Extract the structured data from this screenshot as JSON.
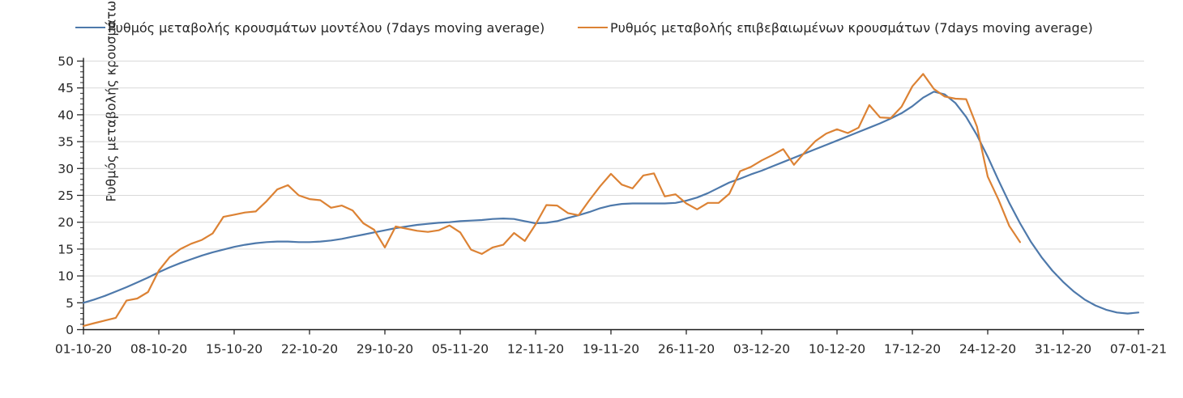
{
  "legend": {
    "items": [
      {
        "label": "Ρυθμός μεταβολής κρουσμάτων μοντέλου (7days moving average)",
        "color": "#4e79ab"
      },
      {
        "label": "Ρυθμός μεταβολής επιβεβαιωμένων κρουσμάτων (7days moving average)",
        "color": "#dc8234"
      }
    ]
  },
  "y_axis": {
    "title": "Ρυθμός μεταβολής κρουσμάτων",
    "tick_labels": [
      "0",
      "5",
      "10",
      "15",
      "20",
      "25",
      "30",
      "35",
      "40",
      "45",
      "50"
    ]
  },
  "x_axis": {
    "tick_labels": [
      "01-10-20",
      "08-10-20",
      "15-10-20",
      "22-10-20",
      "29-10-20",
      "05-11-20",
      "12-11-20",
      "19-11-20",
      "26-11-20",
      "03-12-20",
      "10-12-20",
      "17-12-20",
      "24-12-20",
      "31-12-20",
      "07-01-21"
    ]
  },
  "chart_data": {
    "type": "line",
    "title": "",
    "xlabel": "",
    "ylabel": "Ρυθμός μεταβολής κρουσμάτων",
    "ylim": [
      0,
      50
    ],
    "y_tick_step": 5,
    "y_minor_tick_step": 1,
    "grid": "horizontal light gray every 5",
    "legend_position": "top",
    "x_tick_labels": [
      "01-10-20",
      "08-10-20",
      "15-10-20",
      "22-10-20",
      "29-10-20",
      "05-11-20",
      "12-11-20",
      "19-11-20",
      "26-11-20",
      "03-12-20",
      "10-12-20",
      "17-12-20",
      "24-12-20",
      "31-12-20",
      "07-01-21"
    ],
    "x_days_per_tick": 7,
    "x_total_days": 98,
    "series": [
      {
        "name": "Ρυθμός μεταβολής κρουσμάτων μοντέλου (7days moving average)",
        "color": "#4e79ab",
        "start_day": 0,
        "values": [
          5.0,
          5.6,
          6.3,
          7.1,
          7.9,
          8.8,
          9.7,
          10.7,
          11.6,
          12.4,
          13.1,
          13.8,
          14.4,
          14.9,
          15.4,
          15.8,
          16.1,
          16.3,
          16.4,
          16.4,
          16.3,
          16.3,
          16.4,
          16.6,
          16.9,
          17.3,
          17.7,
          18.1,
          18.5,
          18.9,
          19.2,
          19.5,
          19.7,
          19.9,
          20.0,
          20.2,
          20.3,
          20.4,
          20.6,
          20.7,
          20.6,
          20.2,
          19.8,
          19.9,
          20.2,
          20.8,
          21.3,
          21.9,
          22.6,
          23.1,
          23.4,
          23.5,
          23.5,
          23.5,
          23.5,
          23.6,
          24.0,
          24.6,
          25.4,
          26.4,
          27.4,
          28.1,
          28.9,
          29.6,
          30.4,
          31.2,
          32.0,
          32.8,
          33.6,
          34.4,
          35.2,
          36.0,
          36.8,
          37.6,
          38.4,
          39.3,
          40.3,
          41.6,
          43.2,
          44.3,
          43.8,
          42.2,
          39.6,
          36.2,
          32.2,
          27.8,
          23.6,
          19.8,
          16.4,
          13.5,
          11.0,
          8.9,
          7.1,
          5.6,
          4.5,
          3.7,
          3.2,
          3.0,
          3.2
        ]
      },
      {
        "name": "Ρυθμός μεταβολής επιβεβαιωμένων κρουσμάτων (7days moving average)",
        "color": "#dc8234",
        "start_day": 0,
        "values": [
          0.7,
          1.2,
          1.7,
          2.2,
          5.4,
          5.8,
          7.0,
          11.0,
          13.5,
          15.0,
          16.0,
          16.7,
          17.9,
          21.0,
          21.4,
          21.8,
          22.0,
          23.9,
          26.1,
          26.9,
          25.0,
          24.3,
          24.1,
          22.7,
          23.1,
          22.2,
          19.8,
          18.6,
          15.3,
          19.2,
          18.8,
          18.4,
          18.2,
          18.5,
          19.4,
          18.1,
          14.9,
          14.1,
          15.3,
          15.8,
          18.0,
          16.5,
          19.6,
          23.2,
          23.1,
          21.7,
          21.3,
          24.1,
          26.7,
          29.0,
          27.0,
          26.3,
          28.7,
          29.1,
          24.8,
          25.2,
          23.5,
          22.4,
          23.6,
          23.6,
          25.3,
          29.5,
          30.3,
          31.5,
          32.5,
          33.6,
          30.7,
          33.0,
          35.1,
          36.5,
          37.3,
          36.6,
          37.6,
          41.8,
          39.5,
          39.4,
          41.5,
          45.3,
          47.6,
          44.8,
          43.4,
          43.0,
          42.9,
          37.8,
          28.5,
          24.2,
          19.3,
          16.3
        ]
      }
    ]
  }
}
